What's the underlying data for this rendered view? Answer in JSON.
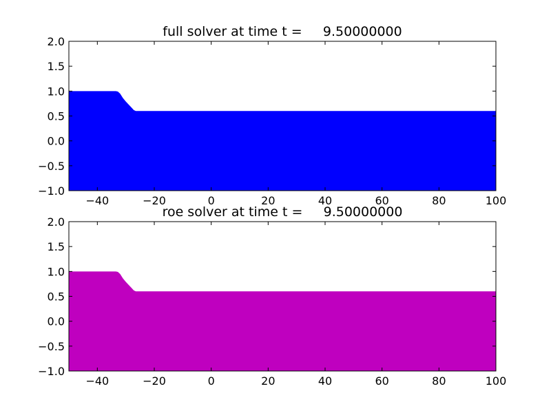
{
  "chart_data": [
    {
      "type": "area",
      "title": "full solver at time t =     9.50000000",
      "xlabel": "",
      "ylabel": "",
      "xlim": [
        -50,
        100
      ],
      "ylim": [
        -1.0,
        2.0
      ],
      "xticks": [
        -40,
        -20,
        0,
        20,
        40,
        60,
        80,
        100
      ],
      "xtick_labels": [
        "−40",
        "−20",
        "0",
        "20",
        "40",
        "60",
        "80",
        "100"
      ],
      "yticks": [
        -1.0,
        -0.5,
        0.0,
        0.5,
        1.0,
        1.5,
        2.0
      ],
      "ytick_labels": [
        "−1.0",
        "−0.5",
        "0.0",
        "0.5",
        "1.0",
        "1.5",
        "2.0"
      ],
      "grid": false,
      "baseline": -1.0,
      "color": "#0000ff",
      "x": [
        -50,
        -33.5,
        -32.8,
        -32.0,
        -31.0,
        -30.0,
        -29.0,
        -28.0,
        -27.2,
        -26.5,
        100
      ],
      "values": [
        1.0,
        1.0,
        0.99,
        0.95,
        0.86,
        0.79,
        0.73,
        0.67,
        0.62,
        0.6,
        0.6
      ]
    },
    {
      "type": "area",
      "title": "roe solver at time t =     9.50000000",
      "xlabel": "",
      "ylabel": "",
      "xlim": [
        -50,
        100
      ],
      "ylim": [
        -1.0,
        2.0
      ],
      "xticks": [
        -40,
        -20,
        0,
        20,
        40,
        60,
        80,
        100
      ],
      "xtick_labels": [
        "−40",
        "−20",
        "0",
        "20",
        "40",
        "60",
        "80",
        "100"
      ],
      "yticks": [
        -1.0,
        -0.5,
        0.0,
        0.5,
        1.0,
        1.5,
        2.0
      ],
      "ytick_labels": [
        "−1.0",
        "−0.5",
        "0.0",
        "0.5",
        "1.0",
        "1.5",
        "2.0"
      ],
      "grid": false,
      "baseline": -1.0,
      "color": "#bf00bf",
      "x": [
        -50,
        -33.5,
        -32.8,
        -32.0,
        -31.0,
        -30.0,
        -29.0,
        -28.0,
        -27.2,
        -26.5,
        100
      ],
      "values": [
        1.0,
        1.0,
        0.99,
        0.95,
        0.86,
        0.79,
        0.73,
        0.67,
        0.62,
        0.6,
        0.6
      ]
    }
  ]
}
